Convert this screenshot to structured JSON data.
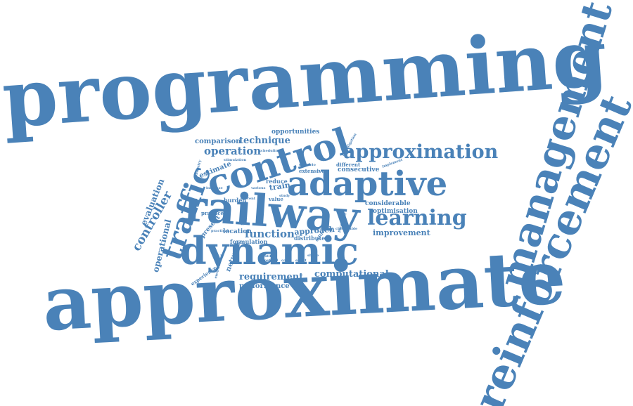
{
  "color": "#4a82b8",
  "words": [
    {
      "id": "programming",
      "text": "programming"
    },
    {
      "id": "approximate",
      "text": "approximate"
    },
    {
      "id": "management",
      "text": "management"
    },
    {
      "id": "reinforcement",
      "text": "reinforcement"
    },
    {
      "id": "railway",
      "text": "railway"
    },
    {
      "id": "dynamic",
      "text": "dynamic"
    },
    {
      "id": "control",
      "text": "control"
    },
    {
      "id": "adaptive",
      "text": "adaptive"
    },
    {
      "id": "approximation",
      "text": "approximation"
    },
    {
      "id": "traffic",
      "text": "traffic"
    },
    {
      "id": "learning",
      "text": "learning"
    },
    {
      "id": "controller",
      "text": "controller"
    },
    {
      "id": "operation",
      "text": "operation"
    },
    {
      "id": "technique",
      "text": "technique"
    },
    {
      "id": "comparison",
      "text": "comparison"
    },
    {
      "id": "opportunities",
      "text": "opportunities"
    },
    {
      "id": "evaluation",
      "text": "evaluation"
    },
    {
      "id": "operational",
      "text": "operational"
    },
    {
      "id": "estimate",
      "text": "estimate"
    },
    {
      "id": "function",
      "text": "function"
    },
    {
      "id": "approach",
      "text": "approach"
    },
    {
      "id": "computational",
      "text": "computational"
    },
    {
      "id": "requirement",
      "text": "requirement"
    },
    {
      "id": "performance",
      "text": "performance"
    },
    {
      "id": "improvement",
      "text": "improvement"
    },
    {
      "id": "optimisation",
      "text": "optimisation"
    },
    {
      "id": "considerable",
      "text": "considerable"
    },
    {
      "id": "consecutive",
      "text": "consecutive"
    },
    {
      "id": "extensive",
      "text": "extensive"
    },
    {
      "id": "different",
      "text": "different"
    },
    {
      "id": "train",
      "text": "train"
    },
    {
      "id": "reduce",
      "text": "reduce"
    },
    {
      "id": "burden",
      "text": "burden"
    },
    {
      "id": "value",
      "text": "value"
    },
    {
      "id": "location",
      "text": "location"
    },
    {
      "id": "formulation",
      "text": "formulation"
    },
    {
      "id": "distributed",
      "text": "distributed"
    },
    {
      "id": "network",
      "text": "network"
    },
    {
      "id": "present",
      "text": "present"
    },
    {
      "id": "practice",
      "text": "practice"
    },
    {
      "id": "experience",
      "text": "experience"
    },
    {
      "id": "schedule",
      "text": "schedule"
    },
    {
      "id": "stimulation",
      "text": "stimulation"
    },
    {
      "id": "industry",
      "text": "industry"
    },
    {
      "id": "scheduling",
      "text": "scheduling"
    },
    {
      "id": "investigation",
      "text": "investigation"
    },
    {
      "id": "scenario",
      "text": "scenario"
    },
    {
      "id": "implement",
      "text": "implement"
    },
    {
      "id": "critical",
      "text": "critical"
    },
    {
      "id": "parameter",
      "text": "parameter"
    },
    {
      "id": "increase",
      "text": "increase"
    },
    {
      "id": "various",
      "text": "various"
    },
    {
      "id": "current",
      "text": "current"
    },
    {
      "id": "practical",
      "text": "practical"
    },
    {
      "id": "environment",
      "text": "environment"
    },
    {
      "id": "method",
      "text": "method"
    },
    {
      "id": "effect",
      "text": "effect"
    },
    {
      "id": "justify",
      "text": "justify"
    },
    {
      "id": "shape",
      "text": "shape"
    },
    {
      "id": "study",
      "text": "study"
    },
    {
      "id": "cost",
      "text": "cost"
    },
    {
      "id": "classifiable",
      "text": "classifiable"
    }
  ]
}
